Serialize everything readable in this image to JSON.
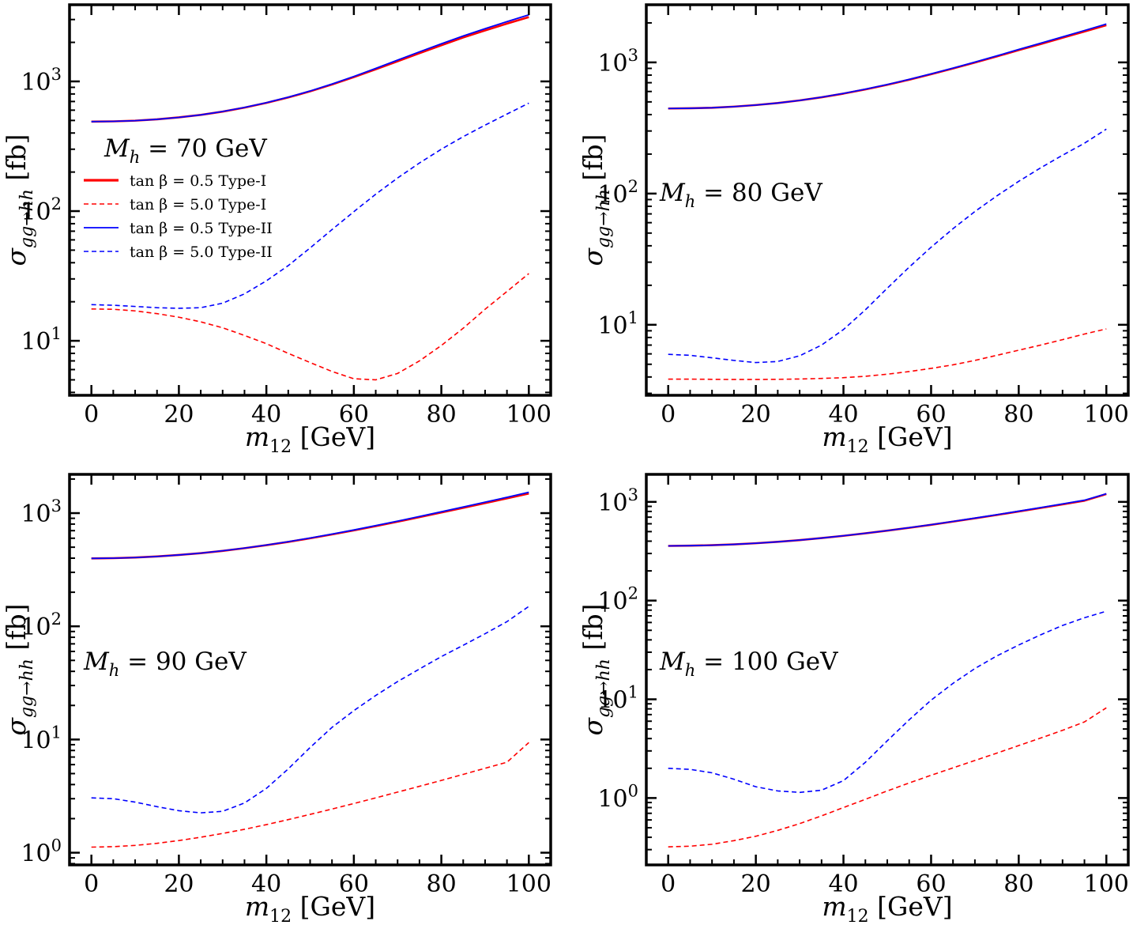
{
  "figure": {
    "colors": {
      "type1": "#ff0000",
      "type2": "#0000ff",
      "frame": "#000000"
    },
    "legend": {
      "entries": [
        {
          "label": "tan β = 0.5 Type-I",
          "color": "#ff0000",
          "style": "solid-thick"
        },
        {
          "label": "tan β = 5.0 Type-I",
          "color": "#ff0000",
          "style": "dashed"
        },
        {
          "label": "tan β = 0.5 Type-II",
          "color": "#0000ff",
          "style": "solid"
        },
        {
          "label": "tan β = 5.0 Type-II",
          "color": "#0000ff",
          "style": "dashed"
        }
      ],
      "placement": "panel-1 left-middle"
    }
  },
  "chart_data": [
    {
      "type": "line",
      "annotation": "M_h = 70 GeV",
      "xlabel": "m12 [GeV]",
      "ylabel": "σ gg→hh [fb]",
      "yscale": "log",
      "xlim": [
        -5,
        105
      ],
      "ylim": [
        3.8,
        3900
      ],
      "xticks": [
        "0",
        "20",
        "40",
        "60",
        "80",
        "100"
      ],
      "yticks": [
        {
          "value": 10,
          "label": "10^1"
        },
        {
          "value": 100,
          "label": "10^2"
        },
        {
          "value": 1000,
          "label": "10^3"
        }
      ],
      "x": [
        0,
        5,
        10,
        15,
        20,
        25,
        30,
        35,
        40,
        45,
        50,
        55,
        60,
        65,
        70,
        75,
        80,
        85,
        90,
        95,
        100
      ],
      "series": [
        {
          "name": "tan β = 0.5 Type-I",
          "values": [
            490,
            492,
            498,
            510,
            528,
            552,
            585,
            628,
            683,
            752,
            838,
            946,
            1080,
            1240,
            1430,
            1650,
            1900,
            2180,
            2470,
            2790,
            3130
          ]
        },
        {
          "name": "tan β = 5.0 Type-I",
          "values": [
            17.6,
            17.5,
            17.0,
            16.2,
            15.2,
            14.0,
            12.6,
            11.0,
            9.5,
            8.0,
            6.8,
            5.8,
            5.1,
            5.0,
            5.6,
            7.0,
            9.2,
            12.5,
            17.5,
            24.0,
            33.0
          ]
        },
        {
          "name": "tan β = 0.5 Type-II",
          "values": [
            490,
            492,
            498,
            510,
            528,
            552,
            586,
            630,
            686,
            756,
            844,
            955,
            1092,
            1260,
            1460,
            1690,
            1950,
            2240,
            2550,
            2890,
            3260
          ]
        },
        {
          "name": "tan β = 5.0 Type-II",
          "values": [
            19.0,
            18.8,
            18.4,
            18.0,
            17.8,
            18.0,
            19.5,
            23.0,
            29.0,
            38.0,
            52.0,
            72.0,
            99.0,
            135,
            180,
            235,
            300,
            375,
            460,
            560,
            680
          ]
        }
      ]
    },
    {
      "type": "line",
      "annotation": "M_h = 80 GeV",
      "xlabel": "m12 [GeV]",
      "ylabel": "σ gg→hh [fb]",
      "yscale": "log",
      "xlim": [
        -5,
        105
      ],
      "ylim": [
        2.9,
        2750
      ],
      "xticks": [
        "0",
        "20",
        "40",
        "60",
        "80",
        "100"
      ],
      "yticks": [
        {
          "value": 10,
          "label": "10^1"
        },
        {
          "value": 100,
          "label": "10^2"
        },
        {
          "value": 1000,
          "label": "10^3"
        }
      ],
      "x": [
        0,
        5,
        10,
        15,
        20,
        25,
        30,
        35,
        40,
        45,
        50,
        55,
        60,
        65,
        70,
        75,
        80,
        85,
        90,
        95,
        100
      ],
      "series": [
        {
          "name": "tan β = 0.5 Type-I",
          "values": [
            445,
            447,
            451,
            460,
            473,
            490,
            513,
            542,
            578,
            622,
            675,
            738,
            812,
            898,
            997,
            1110,
            1240,
            1380,
            1540,
            1720,
            1920
          ]
        },
        {
          "name": "tan β = 5.0 Type-I",
          "values": [
            3.85,
            3.85,
            3.84,
            3.83,
            3.83,
            3.84,
            3.86,
            3.9,
            3.95,
            4.05,
            4.2,
            4.4,
            4.65,
            4.95,
            5.35,
            5.85,
            6.4,
            7.0,
            7.7,
            8.5,
            9.3
          ]
        },
        {
          "name": "tan β = 0.5 Type-II",
          "values": [
            445,
            447,
            451,
            460,
            473,
            490,
            513,
            543,
            580,
            625,
            678,
            742,
            818,
            905,
            1006,
            1122,
            1255,
            1400,
            1565,
            1750,
            1960
          ]
        },
        {
          "name": "tan β = 5.0 Type-II",
          "values": [
            5.95,
            5.85,
            5.6,
            5.35,
            5.15,
            5.25,
            5.8,
            7.0,
            9.2,
            13.0,
            19.0,
            27.5,
            39.0,
            54.0,
            73.0,
            96.0,
            124,
            157,
            196,
            242,
            310
          ]
        }
      ]
    },
    {
      "type": "line",
      "annotation": "M_h = 90 GeV",
      "xlabel": "m12 [GeV]",
      "ylabel": "σ gg→hh [fb]",
      "yscale": "log",
      "xlim": [
        -5,
        105
      ],
      "ylim": [
        0.78,
        2200
      ],
      "xticks": [
        "0",
        "20",
        "40",
        "60",
        "80",
        "100"
      ],
      "yticks": [
        {
          "value": 1,
          "label": "10^0"
        },
        {
          "value": 10,
          "label": "10^1"
        },
        {
          "value": 100,
          "label": "10^2"
        },
        {
          "value": 1000,
          "label": "10^3"
        }
      ],
      "x": [
        0,
        5,
        10,
        15,
        20,
        25,
        30,
        35,
        40,
        45,
        50,
        55,
        60,
        65,
        70,
        75,
        80,
        85,
        90,
        95,
        100
      ],
      "series": [
        {
          "name": "tan β = 0.5 Type-I",
          "values": [
            398,
            400,
            405,
            414,
            427,
            443,
            464,
            490,
            521,
            557,
            599,
            648,
            704,
            768,
            840,
            921,
            1012,
            1113,
            1225,
            1350,
            1490
          ]
        },
        {
          "name": "tan β = 5.0 Type-I",
          "values": [
            1.12,
            1.13,
            1.16,
            1.21,
            1.28,
            1.37,
            1.48,
            1.61,
            1.77,
            1.96,
            2.18,
            2.43,
            2.72,
            3.05,
            3.43,
            3.86,
            4.35,
            4.92,
            5.57,
            6.3,
            9.4
          ]
        },
        {
          "name": "tan β = 0.5 Type-II",
          "values": [
            398,
            400,
            405,
            414,
            427,
            443,
            465,
            491,
            523,
            560,
            603,
            653,
            710,
            776,
            850,
            934,
            1028,
            1133,
            1250,
            1380,
            1530
          ]
        },
        {
          "name": "tan β = 5.0 Type-II",
          "values": [
            3.05,
            3.0,
            2.8,
            2.55,
            2.35,
            2.25,
            2.32,
            2.75,
            3.7,
            5.5,
            8.5,
            12.8,
            18.0,
            24.5,
            32.5,
            42.0,
            54.0,
            68.0,
            86.0,
            110,
            150
          ]
        }
      ]
    },
    {
      "type": "line",
      "annotation": "M_h = 100 GeV",
      "xlabel": "m12 [GeV]",
      "ylabel": "σ gg→hh [fb]",
      "yscale": "log",
      "xlim": [
        -5,
        105
      ],
      "ylim": [
        0.21,
        1900
      ],
      "xticks": [
        "0",
        "20",
        "40",
        "60",
        "80",
        "100"
      ],
      "yticks": [
        {
          "value": 1,
          "label": "10^0"
        },
        {
          "value": 10,
          "label": "10^1"
        },
        {
          "value": 100,
          "label": "10^2"
        },
        {
          "value": 1000,
          "label": "10^3"
        }
      ],
      "x": [
        0,
        5,
        10,
        15,
        20,
        25,
        30,
        35,
        40,
        45,
        50,
        55,
        60,
        65,
        70,
        75,
        80,
        85,
        90,
        95,
        100
      ],
      "series": [
        {
          "name": "tan β = 0.5 Type-I",
          "values": [
            358,
            360,
            364,
            371,
            381,
            394,
            410,
            430,
            453,
            480,
            511,
            546,
            586,
            631,
            681,
            737,
            799,
            868,
            944,
            1028,
            1200
          ]
        },
        {
          "name": "tan β = 5.0 Type-I",
          "values": [
            0.32,
            0.325,
            0.34,
            0.37,
            0.41,
            0.47,
            0.55,
            0.66,
            0.8,
            0.97,
            1.18,
            1.42,
            1.7,
            2.02,
            2.4,
            2.85,
            3.4,
            4.05,
            4.85,
            5.9,
            8.2
          ]
        },
        {
          "name": "tan β = 0.5 Type-II",
          "values": [
            358,
            360,
            364,
            371,
            381,
            394,
            410,
            430,
            454,
            481,
            512,
            548,
            588,
            634,
            685,
            742,
            805,
            876,
            954,
            1040,
            1210
          ]
        },
        {
          "name": "tan β = 5.0 Type-II",
          "values": [
            2.0,
            1.95,
            1.8,
            1.55,
            1.3,
            1.18,
            1.14,
            1.2,
            1.5,
            2.3,
            3.8,
            6.2,
            9.8,
            14.5,
            20.5,
            27.5,
            35.5,
            45.0,
            56.0,
            67.0,
            78.0
          ]
        }
      ]
    }
  ]
}
